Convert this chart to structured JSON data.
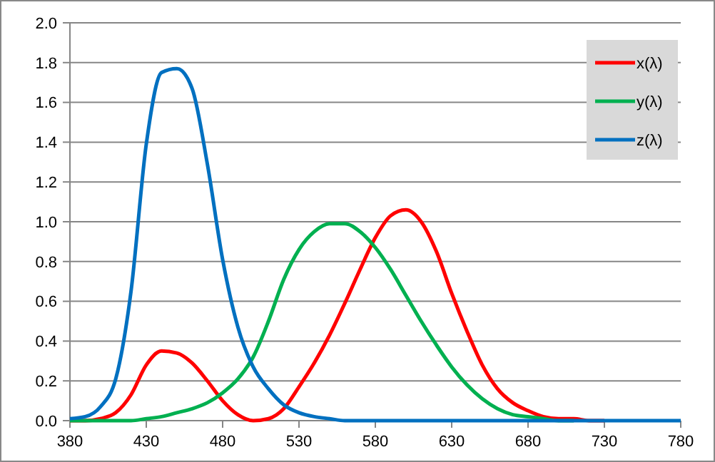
{
  "chart_data": {
    "type": "line",
    "x": [
      380,
      390,
      400,
      410,
      420,
      430,
      440,
      450,
      460,
      470,
      480,
      490,
      500,
      510,
      520,
      530,
      540,
      550,
      560,
      570,
      580,
      590,
      600,
      610,
      620,
      630,
      640,
      650,
      660,
      670,
      680,
      690,
      700,
      710,
      720,
      730,
      740,
      750,
      760,
      770,
      780
    ],
    "series": [
      {
        "name": "x(λ)",
        "color": "#ff0000",
        "values": [
          0.0,
          0.0,
          0.01,
          0.04,
          0.13,
          0.28,
          0.35,
          0.34,
          0.29,
          0.2,
          0.1,
          0.03,
          0.0,
          0.01,
          0.06,
          0.17,
          0.29,
          0.43,
          0.59,
          0.76,
          0.92,
          1.03,
          1.06,
          1.0,
          0.85,
          0.64,
          0.45,
          0.28,
          0.16,
          0.09,
          0.05,
          0.02,
          0.01,
          0.01,
          0.0,
          0.0,
          null,
          null,
          null,
          null,
          null
        ]
      },
      {
        "name": "y(λ)",
        "color": "#00b050",
        "values": [
          0.0,
          0.0,
          0.0,
          0.0,
          0.0,
          0.01,
          0.02,
          0.04,
          0.06,
          0.09,
          0.14,
          0.21,
          0.32,
          0.5,
          0.71,
          0.86,
          0.95,
          0.99,
          0.99,
          0.95,
          0.87,
          0.76,
          0.63,
          0.5,
          0.38,
          0.27,
          0.18,
          0.11,
          0.06,
          0.03,
          0.02,
          0.01,
          0.0,
          0.0,
          null,
          null,
          null,
          null,
          null,
          null,
          null
        ]
      },
      {
        "name": "z(λ)",
        "color": "#0070c0",
        "values": [
          0.01,
          0.02,
          0.07,
          0.21,
          0.65,
          1.39,
          1.75,
          1.77,
          1.67,
          1.29,
          0.81,
          0.47,
          0.27,
          0.16,
          0.08,
          0.04,
          0.02,
          0.01,
          0.0,
          0.0,
          0.0,
          0.0,
          0.0,
          0.0,
          0.0,
          0.0,
          0.0,
          0.0,
          0.0,
          0.0,
          0.0,
          0.0,
          0.0,
          0.0,
          0.0,
          0.0,
          0.0,
          0.0,
          0.0,
          0.0,
          0.0
        ]
      }
    ],
    "xlim": [
      380,
      780
    ],
    "xticks": [
      380,
      430,
      480,
      530,
      580,
      630,
      680,
      730,
      780
    ],
    "ylim": [
      0,
      2
    ],
    "yticks": [
      {
        "value": 0,
        "label": "0.0"
      },
      {
        "value": 0.2,
        "label": "0.2"
      },
      {
        "value": 0.4,
        "label": "0.4"
      },
      {
        "value": 0.6,
        "label": "0.6"
      },
      {
        "value": 0.8,
        "label": "0.8"
      },
      {
        "value": 1,
        "label": "1.0"
      },
      {
        "value": 1.2,
        "label": "1.2"
      },
      {
        "value": 1.4,
        "label": "1.4"
      },
      {
        "value": 1.6,
        "label": "1.6"
      },
      {
        "value": 1.8,
        "label": "1.8"
      },
      {
        "value": 2,
        "label": "2.0"
      }
    ],
    "grid": "y",
    "legend": "top right",
    "marker": "none",
    "line_style": "solid"
  }
}
